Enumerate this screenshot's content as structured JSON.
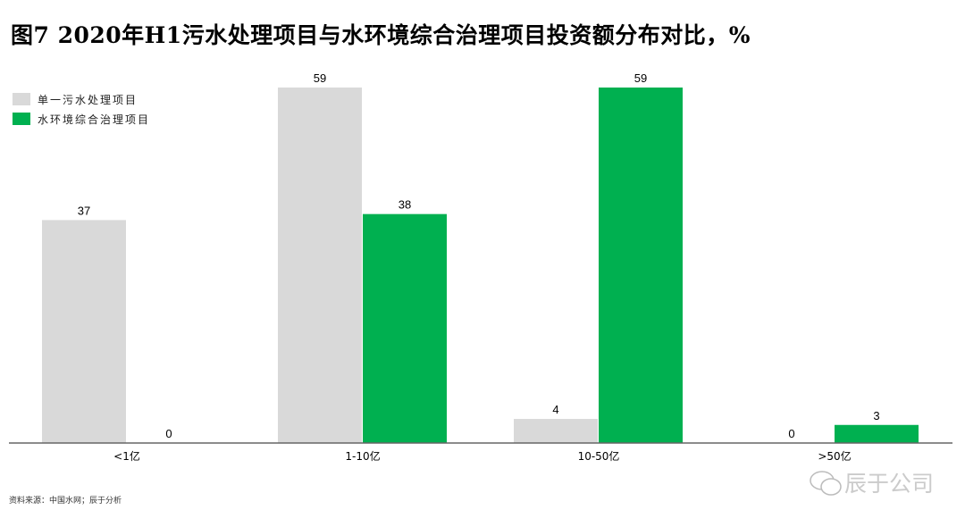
{
  "title": "图7 2020年H1污水处理项目与水环境综合治理项目投资额分布对比，%",
  "source": "资料来源：中国水网；辰于分析",
  "watermark": "辰于公司",
  "chart_data": {
    "type": "bar",
    "title": "图7 2020年H1污水处理项目与水环境综合治理项目投资额分布对比，%",
    "categories": [
      "<1亿",
      "1-10亿",
      "10-50亿",
      ">50亿"
    ],
    "series": [
      {
        "name": "单一污水处理项目",
        "values": [
          37,
          59,
          4,
          0
        ],
        "color": "#d9d9d9"
      },
      {
        "name": "水环境综合治理项目",
        "values": [
          0,
          38,
          59,
          3
        ],
        "color": "#00b050"
      }
    ],
    "ylim": [
      0,
      59
    ],
    "grid": false,
    "legend": "top-left",
    "data_labels": true
  }
}
